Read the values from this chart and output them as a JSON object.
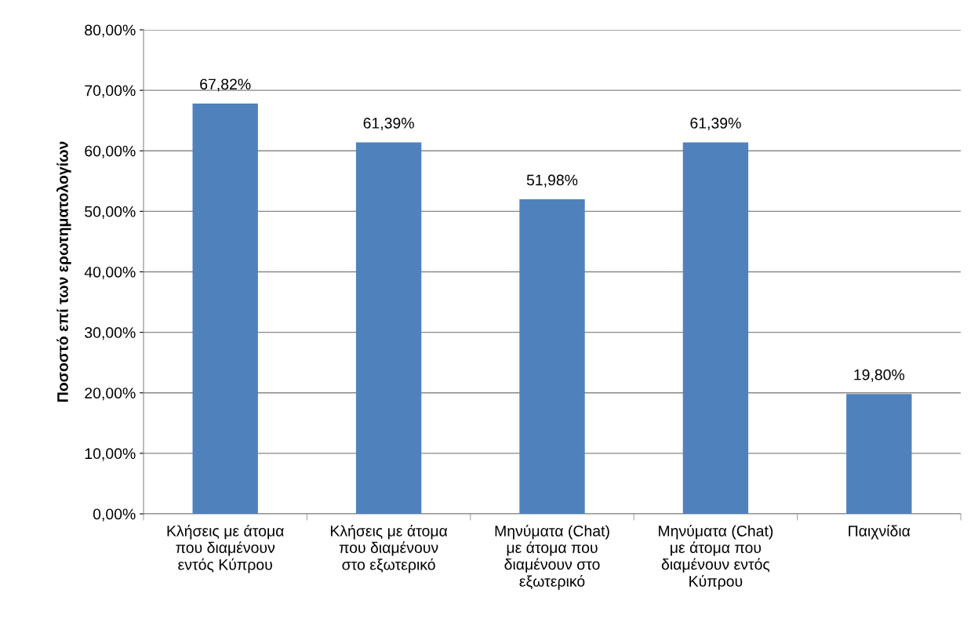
{
  "chart_data": {
    "type": "bar",
    "ylabel": "Ποσοστό επί των ερωτηματολογίων",
    "categories": [
      "Κλήσεις με άτομα\nπου διαμένουν\nεντός Κύπρου",
      "Κλήσεις με άτομα\nπου διαμένουν\nστο εξωτερικό",
      "Μηνύματα (Chat)\nμε άτομα που\nδιαμένουν στο\nεξωτερικό",
      "Μηνύματα (Chat)\nμε άτομα που\nδιαμένουν εντός\nΚύπρου",
      "Παιχνίδια"
    ],
    "values": [
      67.82,
      61.39,
      51.98,
      61.39,
      19.8
    ],
    "value_labels": [
      "67,82%",
      "61,39%",
      "51,98%",
      "61,39%",
      "19,80%"
    ],
    "color": "#4f81bd",
    "ylim": [
      0,
      80
    ],
    "yticks": [
      {
        "value": 0,
        "label": "0,00%"
      },
      {
        "value": 10,
        "label": "10,00%"
      },
      {
        "value": 20,
        "label": "20,00%"
      },
      {
        "value": 30,
        "label": "30,00%"
      },
      {
        "value": 40,
        "label": "40,00%"
      },
      {
        "value": 50,
        "label": "50,00%"
      },
      {
        "value": 60,
        "label": "60,00%"
      },
      {
        "value": 70,
        "label": "70,00%"
      },
      {
        "value": 80,
        "label": "80,00%"
      }
    ],
    "grid": "y",
    "legend": false
  }
}
